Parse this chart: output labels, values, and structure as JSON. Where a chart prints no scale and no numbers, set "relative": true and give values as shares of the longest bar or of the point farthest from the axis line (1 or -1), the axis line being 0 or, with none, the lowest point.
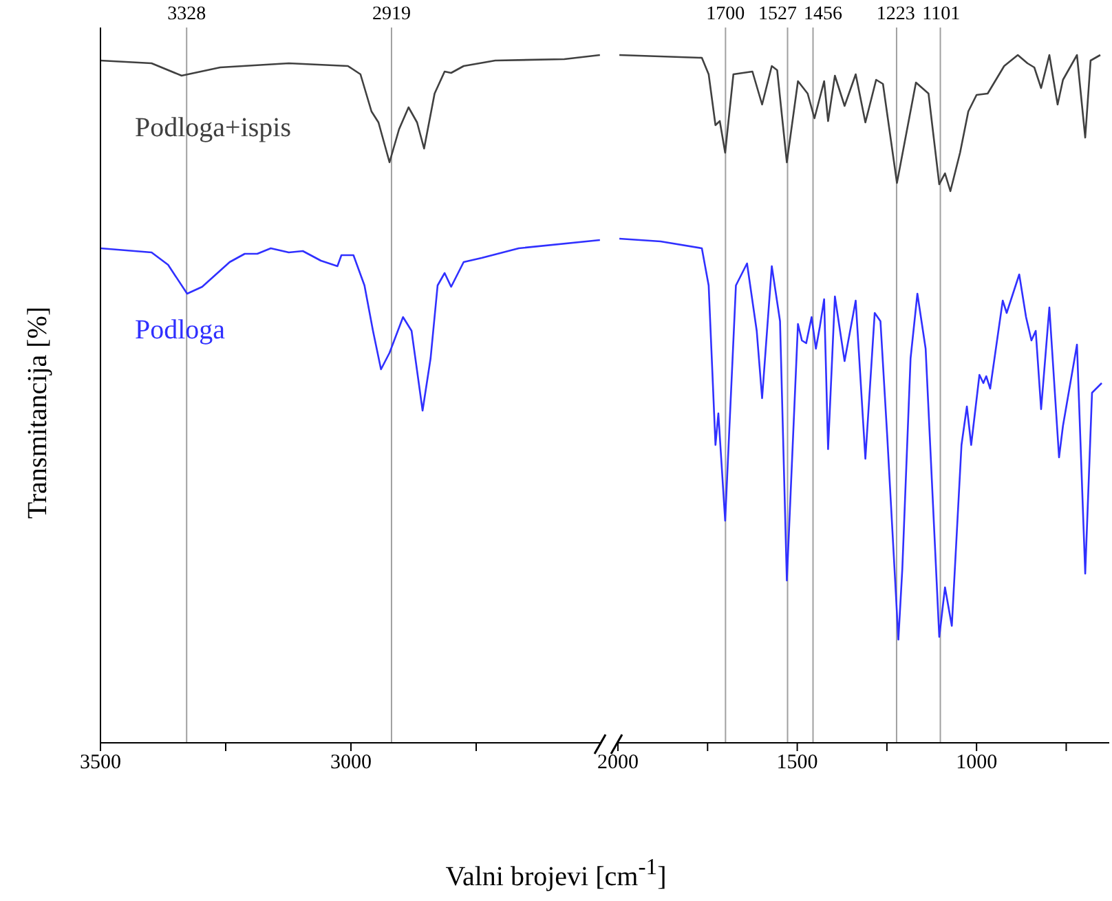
{
  "chart_data": [
    {
      "type": "line",
      "relative": true,
      "ylabel": "Transmitancija [%]",
      "xlim": [
        3500,
        2500
      ],
      "xticks": [
        3500,
        {
          "value": 3250,
          "label": null
        },
        3000,
        {
          "value": 2750,
          "label": null
        }
      ],
      "tick_labels": "x",
      "legend": false,
      "grid": false,
      "ref_lines": [
        {
          "axis": "x",
          "value": 3328,
          "label": "3328",
          "color": "#a0a0a0"
        },
        {
          "axis": "x",
          "value": 2919,
          "label": "2919",
          "color": "#a0a0a0"
        }
      ],
      "series": [
        {
          "name": "Podloga+ispis",
          "color": "#404040",
          "x": [
            3500,
            3398,
            3338,
            3261,
            3124,
            3006,
            2981,
            2959,
            2945,
            2923,
            2904,
            2885,
            2868,
            2854,
            2833,
            2813,
            2800,
            2775,
            2712,
            2574,
            2503
          ],
          "values": [
            0.992,
            0.988,
            0.97,
            0.982,
            0.988,
            0.984,
            0.972,
            0.918,
            0.902,
            0.844,
            0.892,
            0.924,
            0.902,
            0.864,
            0.944,
            0.976,
            0.974,
            0.984,
            0.992,
            0.994,
            1.0
          ]
        },
        {
          "name": "Podloga",
          "color": "#3030ff",
          "x": [
            3500,
            3398,
            3365,
            3327,
            3297,
            3242,
            3212,
            3187,
            3160,
            3124,
            3096,
            3060,
            3027,
            3019,
            2995,
            2973,
            2956,
            2940,
            2923,
            2896,
            2879,
            2857,
            2841,
            2827,
            2813,
            2800,
            2775,
            2739,
            2665,
            2503
          ],
          "values": [
            0.719,
            0.713,
            0.695,
            0.653,
            0.663,
            0.699,
            0.711,
            0.711,
            0.719,
            0.713,
            0.715,
            0.701,
            0.693,
            0.709,
            0.709,
            0.665,
            0.599,
            0.543,
            0.567,
            0.619,
            0.599,
            0.483,
            0.559,
            0.665,
            0.683,
            0.663,
            0.699,
            0.705,
            0.719,
            0.731
          ]
        }
      ]
    },
    {
      "type": "line",
      "relative": true,
      "xlabel": "Valni brojevi [cm$^{-1}$]",
      "xlim": [
        2000,
        630
      ],
      "xticks": [
        2000,
        {
          "value": 1750,
          "label": null
        },
        1500,
        {
          "value": 1250,
          "label": null
        },
        1000,
        {
          "value": 750,
          "label": null
        }
      ],
      "tick_labels": "x",
      "legend": false,
      "grid": false,
      "ref_lines": [
        {
          "axis": "x",
          "value": 1700,
          "label": "1700",
          "color": "#a0a0a0"
        },
        {
          "axis": "x",
          "value": 1527,
          "label": "1527",
          "color": "#a0a0a0"
        },
        {
          "axis": "x",
          "value": 1456,
          "label": "1456",
          "color": "#a0a0a0"
        },
        {
          "axis": "x",
          "value": 1223,
          "label": "1223",
          "color": "#a0a0a0"
        },
        {
          "axis": "x",
          "value": 1101,
          "label": "1101",
          "color": "#a0a0a0"
        }
      ],
      "series": [
        {
          "color": "#404040",
          "x": [
            1996,
            1766,
            1747,
            1728,
            1716,
            1701,
            1678,
            1625,
            1598,
            1571,
            1556,
            1529,
            1498,
            1471,
            1452,
            1425,
            1414,
            1395,
            1368,
            1337,
            1310,
            1280,
            1261,
            1222,
            1169,
            1134,
            1104,
            1088,
            1073,
            1046,
            1023,
            1000,
            969,
            923,
            885,
            858,
            839,
            820,
            797,
            774,
            759,
            720,
            697,
            682,
            655
          ],
          "values": [
            1.0,
            0.996,
            0.972,
            0.898,
            0.904,
            0.858,
            0.972,
            0.976,
            0.928,
            0.984,
            0.978,
            0.844,
            0.962,
            0.944,
            0.908,
            0.962,
            0.904,
            0.97,
            0.926,
            0.972,
            0.902,
            0.964,
            0.958,
            0.814,
            0.96,
            0.944,
            0.812,
            0.828,
            0.802,
            0.858,
            0.918,
            0.942,
            0.944,
            0.984,
            1.0,
            0.988,
            0.982,
            0.952,
            1.0,
            0.928,
            0.964,
            1.0,
            0.88,
            0.992,
            1.0
          ]
        },
        {
          "color": "#3030ff",
          "x": [
            1996,
            1881,
            1766,
            1747,
            1728,
            1720,
            1701,
            1671,
            1640,
            1613,
            1598,
            1571,
            1548,
            1529,
            1498,
            1487,
            1475,
            1460,
            1448,
            1437,
            1425,
            1414,
            1395,
            1368,
            1337,
            1310,
            1284,
            1268,
            1249,
            1218,
            1207,
            1184,
            1165,
            1142,
            1104,
            1088,
            1069,
            1042,
            1027,
            1015,
            992,
            981,
            973,
            962,
            927,
            916,
            881,
            862,
            847,
            835,
            820,
            797,
            770,
            759,
            720,
            697,
            678,
            651
          ],
          "values": [
            0.733,
            0.729,
            0.719,
            0.665,
            0.433,
            0.479,
            0.323,
            0.665,
            0.697,
            0.599,
            0.501,
            0.693,
            0.613,
            0.236,
            0.609,
            0.585,
            0.581,
            0.619,
            0.573,
            0.605,
            0.645,
            0.427,
            0.649,
            0.555,
            0.643,
            0.413,
            0.625,
            0.613,
            0.445,
            0.15,
            0.253,
            0.559,
            0.653,
            0.573,
            0.154,
            0.226,
            0.17,
            0.433,
            0.489,
            0.433,
            0.535,
            0.523,
            0.533,
            0.515,
            0.643,
            0.625,
            0.681,
            0.619,
            0.585,
            0.599,
            0.485,
            0.633,
            0.415,
            0.461,
            0.579,
            0.246,
            0.509,
            0.523
          ]
        }
      ]
    }
  ]
}
